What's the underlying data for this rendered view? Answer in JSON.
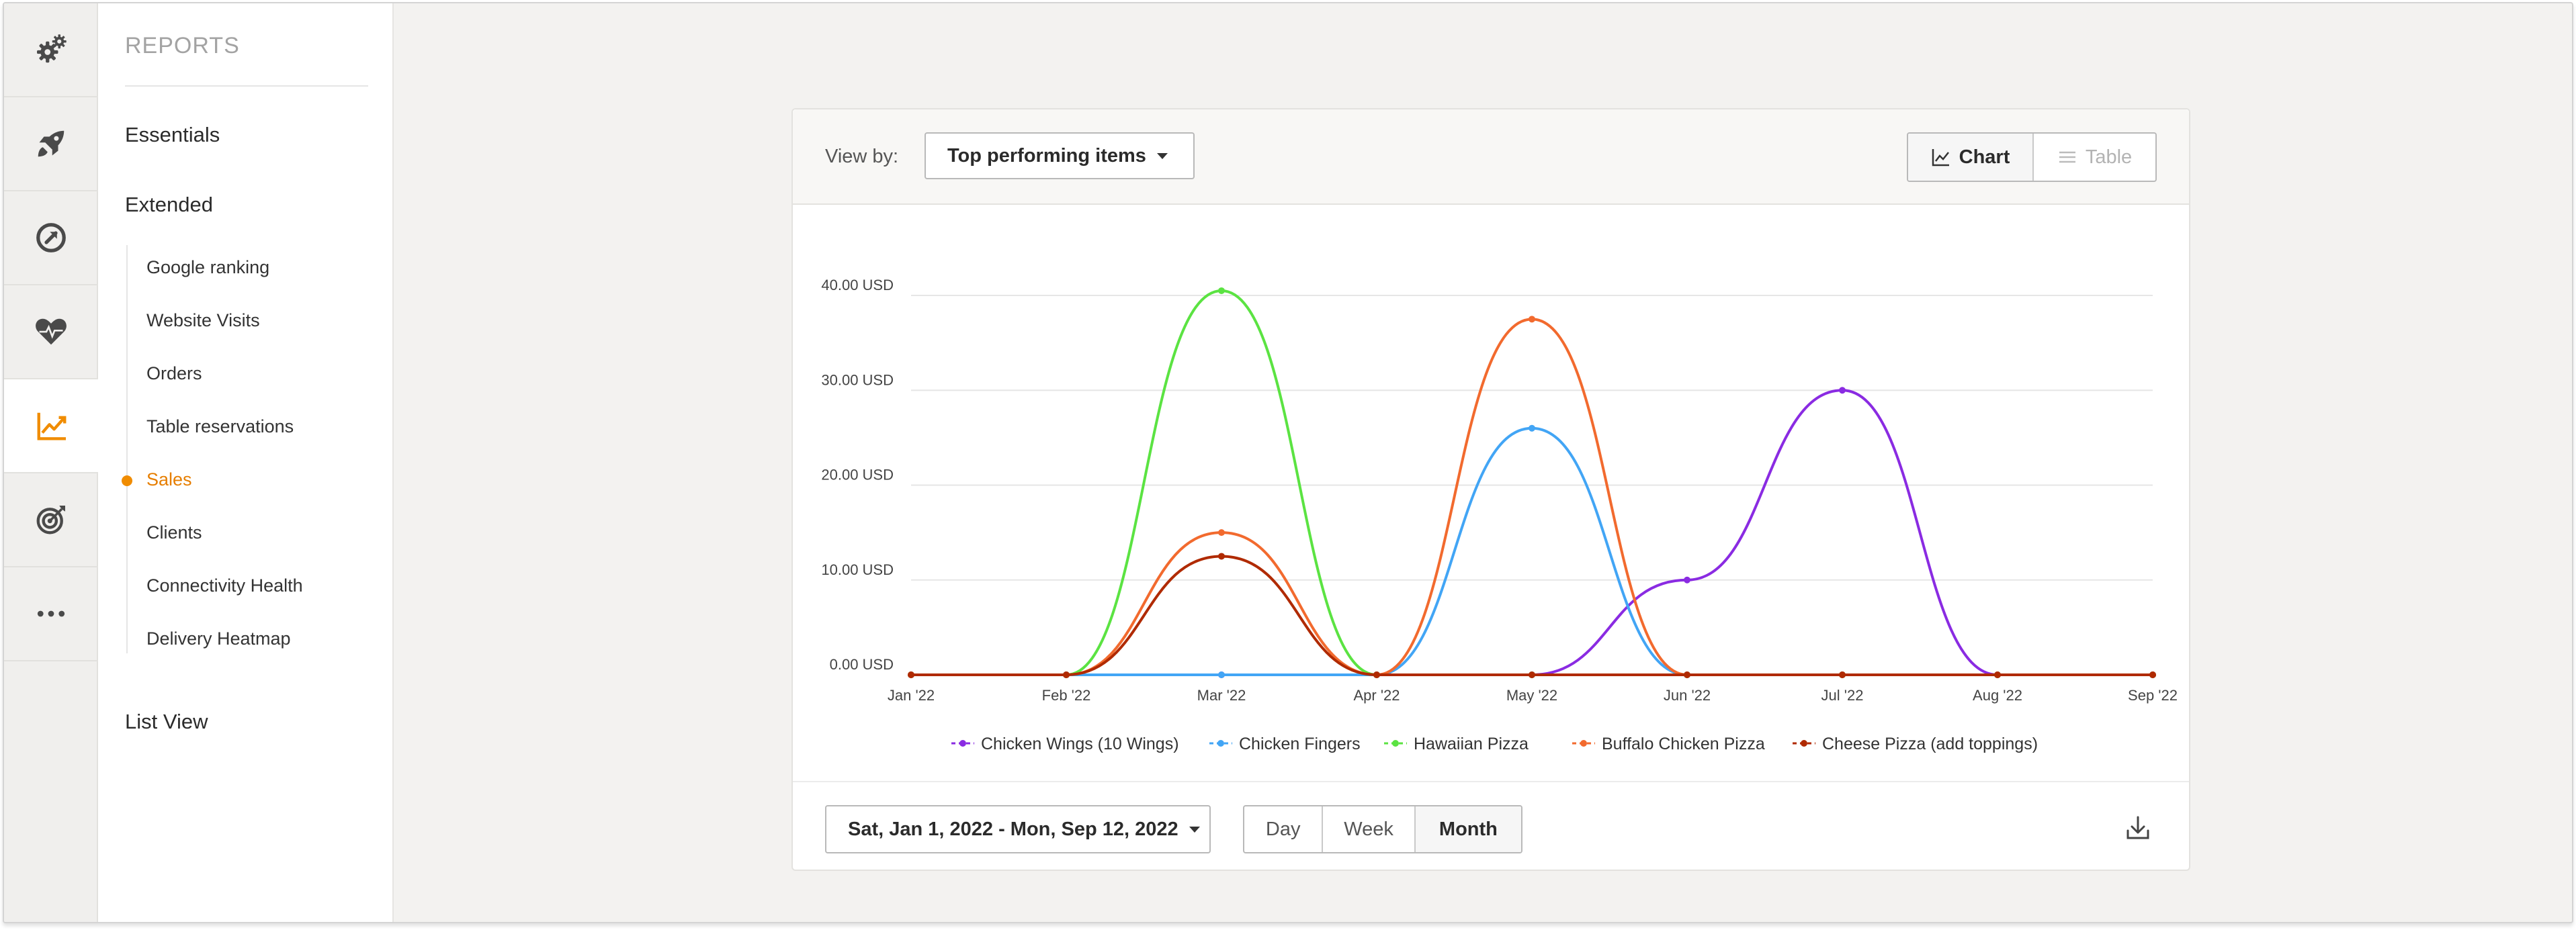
{
  "rail": {
    "items": [
      {
        "icon": "gears-icon"
      },
      {
        "icon": "rocket-icon"
      },
      {
        "icon": "gauge-icon"
      },
      {
        "icon": "heart-pulse-icon"
      },
      {
        "icon": "chart-line-icon",
        "active": true
      },
      {
        "icon": "target-icon"
      },
      {
        "icon": "more-icon"
      }
    ]
  },
  "submenu": {
    "header": "REPORTS",
    "essentials": "Essentials",
    "extended": "Extended",
    "items": [
      {
        "label": "Google ranking"
      },
      {
        "label": "Website Visits"
      },
      {
        "label": "Orders"
      },
      {
        "label": "Table reservations"
      },
      {
        "label": "Sales",
        "active": true
      },
      {
        "label": "Clients"
      },
      {
        "label": "Connectivity Health"
      },
      {
        "label": "Delivery Heatmap"
      }
    ],
    "list_view": "List View"
  },
  "toolbar": {
    "view_by_label": "View by:",
    "view_by_value": "Top performing items",
    "chart_label": "Chart",
    "table_label": "Table"
  },
  "footer": {
    "date_range": "Sat, Jan 1, 2022 - Mon, Sep 12, 2022",
    "granularity": [
      "Day",
      "Week",
      "Month"
    ],
    "selected": "Month"
  },
  "colors": {
    "accent": "#f08c00",
    "chicken_wings": "#8a2be2",
    "chicken_fingers": "#42a5f5",
    "hawaiian_pizza": "#5be342",
    "buffalo_chicken_pizza": "#f26a2e",
    "cheese_pizza": "#b02a00"
  },
  "chart_data": {
    "type": "line",
    "x": [
      "Jan '22",
      "Feb '22",
      "Mar '22",
      "Apr '22",
      "May '22",
      "Jun '22",
      "Jul '22",
      "Aug '22",
      "Sep '22"
    ],
    "ylim": [
      0,
      40
    ],
    "y_ticks": [
      "0.00 USD",
      "10.00 USD",
      "20.00 USD",
      "30.00 USD",
      "40.00 USD"
    ],
    "grid": true,
    "legend": "bottom",
    "series": [
      {
        "name": "Chicken Wings (10 Wings)",
        "color": "#8a2be2",
        "values": [
          0,
          0,
          0,
          0,
          0,
          10,
          30,
          0,
          0
        ]
      },
      {
        "name": "Chicken Fingers",
        "color": "#42a5f5",
        "values": [
          0,
          0,
          0,
          0,
          26,
          0,
          0,
          0,
          0
        ]
      },
      {
        "name": "Hawaiian Pizza",
        "color": "#5be342",
        "values": [
          0,
          0,
          40.5,
          0,
          0,
          0,
          0,
          0,
          0
        ]
      },
      {
        "name": "Buffalo Chicken Pizza",
        "color": "#f26a2e",
        "values": [
          0,
          0,
          15,
          0,
          37.5,
          0,
          0,
          0,
          0
        ]
      },
      {
        "name": "Cheese Pizza (add toppings)",
        "color": "#b02a00",
        "values": [
          0,
          0,
          12.5,
          0,
          0,
          0,
          0,
          0,
          0
        ]
      }
    ]
  }
}
